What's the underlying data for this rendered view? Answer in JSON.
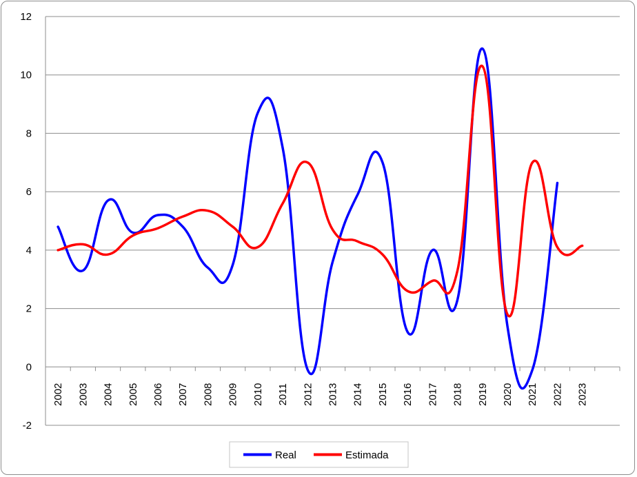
{
  "chart_data": {
    "type": "line",
    "title": "",
    "xlabel": "",
    "ylabel": "",
    "x": [
      "2002",
      "2003",
      "2004",
      "2005",
      "2006",
      "2007",
      "2008",
      "2009",
      "2010",
      "2011",
      "2012",
      "2013",
      "2014",
      "2015",
      "2016",
      "2017",
      "2018",
      "2019",
      "2020",
      "2021",
      "2022",
      "2023"
    ],
    "y_ticks": [
      "-2",
      "0",
      "2",
      "4",
      "6",
      "8",
      "10",
      "12"
    ],
    "ylim": [
      -2,
      12
    ],
    "grid": "horizontal",
    "legend_position": "bottom",
    "series": [
      {
        "name": "Real",
        "color": "#0000ff",
        "values": [
          4.8,
          3.3,
          5.7,
          4.6,
          5.2,
          4.8,
          3.4,
          3.5,
          8.7,
          7.5,
          -0.1,
          3.6,
          5.9,
          7.0,
          1.2,
          4.0,
          2.3,
          10.9,
          1.4,
          -0.1,
          6.3,
          null
        ]
      },
      {
        "name": "Estimada",
        "color": "#ff0000",
        "values": [
          4.0,
          4.2,
          3.85,
          4.5,
          4.75,
          5.15,
          5.35,
          4.8,
          4.1,
          5.6,
          7.0,
          4.7,
          4.3,
          3.85,
          2.6,
          2.95,
          3.3,
          10.3,
          1.8,
          7.0,
          4.1,
          4.15
        ]
      }
    ]
  }
}
